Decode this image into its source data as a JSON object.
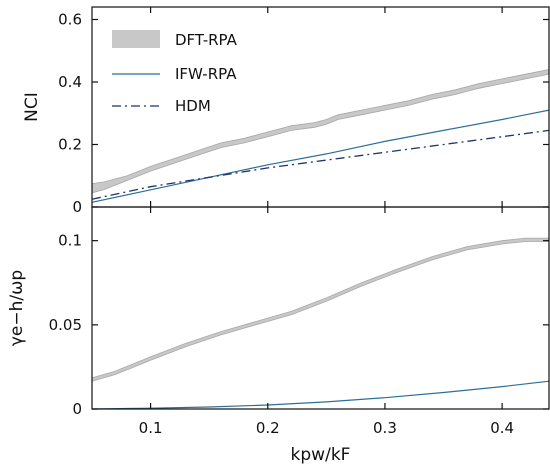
{
  "chart_data": [
    {
      "type": "line",
      "panel": "top",
      "xlim": [
        0.05,
        0.44
      ],
      "ylim": [
        0,
        0.64
      ],
      "ylabel": "NCI",
      "yticks": [
        {
          "value": 0,
          "label": "0"
        },
        {
          "value": 0.2,
          "label": "0.2"
        },
        {
          "value": 0.4,
          "label": "0.4"
        },
        {
          "value": 0.6,
          "label": "0.6"
        }
      ],
      "legend_position": "top-left",
      "legend": [
        {
          "label": "DFT-RPA",
          "series": "dft"
        },
        {
          "label": "IFW-RPA",
          "series": "ifw"
        },
        {
          "label": "HDM",
          "series": "hdm"
        }
      ],
      "series": [
        {
          "name": "DFT-RPA",
          "style": "band",
          "color": "#c8c8c8",
          "edge": "#a8a8a8",
          "x": [
            0.05,
            0.06,
            0.07,
            0.08,
            0.09,
            0.1,
            0.12,
            0.14,
            0.16,
            0.18,
            0.2,
            0.22,
            0.24,
            0.25,
            0.26,
            0.28,
            0.3,
            0.32,
            0.34,
            0.36,
            0.38,
            0.4,
            0.42,
            0.44
          ],
          "y_low": [
            0.045,
            0.055,
            0.07,
            0.085,
            0.1,
            0.115,
            0.14,
            0.165,
            0.19,
            0.205,
            0.225,
            0.245,
            0.255,
            0.265,
            0.28,
            0.295,
            0.31,
            0.325,
            0.345,
            0.36,
            0.38,
            0.395,
            0.41,
            0.425
          ],
          "y_high": [
            0.075,
            0.08,
            0.09,
            0.1,
            0.115,
            0.13,
            0.155,
            0.18,
            0.205,
            0.22,
            0.24,
            0.26,
            0.27,
            0.28,
            0.295,
            0.31,
            0.325,
            0.34,
            0.36,
            0.375,
            0.395,
            0.41,
            0.425,
            0.44
          ]
        },
        {
          "name": "IFW-RPA",
          "style": "solid",
          "color": "#2f6e96",
          "x": [
            0.05,
            0.1,
            0.15,
            0.2,
            0.25,
            0.3,
            0.35,
            0.4,
            0.44
          ],
          "y": [
            0.015,
            0.055,
            0.095,
            0.135,
            0.17,
            0.21,
            0.245,
            0.28,
            0.31
          ]
        },
        {
          "name": "HDM",
          "style": "dashdot",
          "color": "#1c3566",
          "x": [
            0.05,
            0.1,
            0.15,
            0.2,
            0.25,
            0.3,
            0.35,
            0.4,
            0.44
          ],
          "y": [
            0.025,
            0.065,
            0.095,
            0.125,
            0.15,
            0.175,
            0.2,
            0.225,
            0.245
          ]
        }
      ]
    },
    {
      "type": "line",
      "panel": "bottom",
      "xlim": [
        0.05,
        0.44
      ],
      "ylim": [
        0,
        0.12
      ],
      "ylabel": "γe−h/ωp",
      "xlabel": "kpw/kF",
      "xticks": [
        {
          "value": 0.1,
          "label": "0.1"
        },
        {
          "value": 0.2,
          "label": "0.2"
        },
        {
          "value": 0.3,
          "label": "0.3"
        },
        {
          "value": 0.4,
          "label": "0.4"
        }
      ],
      "yticks": [
        {
          "value": 0,
          "label": "0"
        },
        {
          "value": 0.05,
          "label": "0.05"
        },
        {
          "value": 0.1,
          "label": "0.1"
        }
      ],
      "series": [
        {
          "name": "DFT-RPA",
          "style": "band",
          "color": "#c8c8c8",
          "edge": "#a8a8a8",
          "x": [
            0.05,
            0.07,
            0.1,
            0.13,
            0.16,
            0.19,
            0.22,
            0.25,
            0.28,
            0.31,
            0.34,
            0.37,
            0.4,
            0.42,
            0.44
          ],
          "y_low": [
            0.0165,
            0.0205,
            0.029,
            0.037,
            0.044,
            0.05,
            0.056,
            0.064,
            0.073,
            0.081,
            0.0885,
            0.0945,
            0.098,
            0.0995,
            0.0995
          ],
          "y_high": [
            0.0185,
            0.0225,
            0.031,
            0.039,
            0.046,
            0.052,
            0.058,
            0.066,
            0.075,
            0.083,
            0.0905,
            0.0965,
            0.1,
            0.1015,
            0.1015
          ]
        },
        {
          "name": "IFW-RPA",
          "style": "solid",
          "color": "#2f6e96",
          "x": [
            0.05,
            0.1,
            0.15,
            0.2,
            0.25,
            0.3,
            0.35,
            0.4,
            0.44
          ],
          "y": [
            0.0,
            0.0005,
            0.0012,
            0.0024,
            0.0042,
            0.0067,
            0.0098,
            0.0133,
            0.0165
          ]
        }
      ]
    }
  ]
}
